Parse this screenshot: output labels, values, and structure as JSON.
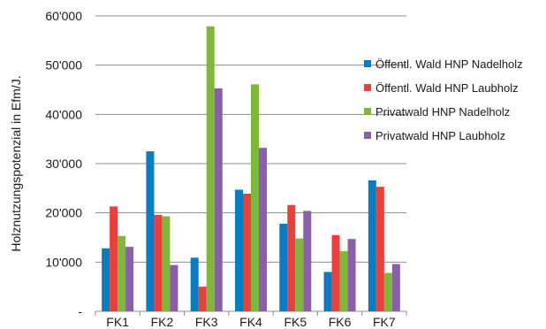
{
  "chart_data": {
    "type": "bar",
    "categories": [
      "FK1",
      "FK2",
      "FK3",
      "FK4",
      "FK5",
      "FK6",
      "FK7"
    ],
    "series": [
      {
        "name": "Öffentl. Wald HNP Nadelholz",
        "color": "#0c7bbf",
        "values": [
          12800,
          32500,
          10900,
          24700,
          17800,
          8000,
          26600
        ]
      },
      {
        "name": "Öffentl. Wald HNP Laubholz",
        "color": "#e8403d",
        "values": [
          21300,
          19600,
          5000,
          23900,
          21600,
          15500,
          25300
        ]
      },
      {
        "name": "Privatwald HNP Nadelholz",
        "color": "#7fb73b",
        "values": [
          15300,
          19300,
          57900,
          46100,
          14800,
          12200,
          7800
        ]
      },
      {
        "name": "Privatwald HNP Laubholz",
        "color": "#8a5fa8",
        "values": [
          13100,
          9400,
          45300,
          33200,
          20400,
          14700,
          9600
        ]
      }
    ],
    "ylabel": "Holznutzungspotenzial in Efm/J.",
    "xlabel": "",
    "title": "",
    "ylim": [
      0,
      60000
    ],
    "yticks": [
      0,
      10000,
      20000,
      30000,
      40000,
      50000,
      60000
    ],
    "ytick_labels": [
      "-",
      "10'000",
      "20'000",
      "30'000",
      "40'000",
      "50'000",
      "60'000"
    ],
    "grid": true,
    "legend_position": "right"
  }
}
